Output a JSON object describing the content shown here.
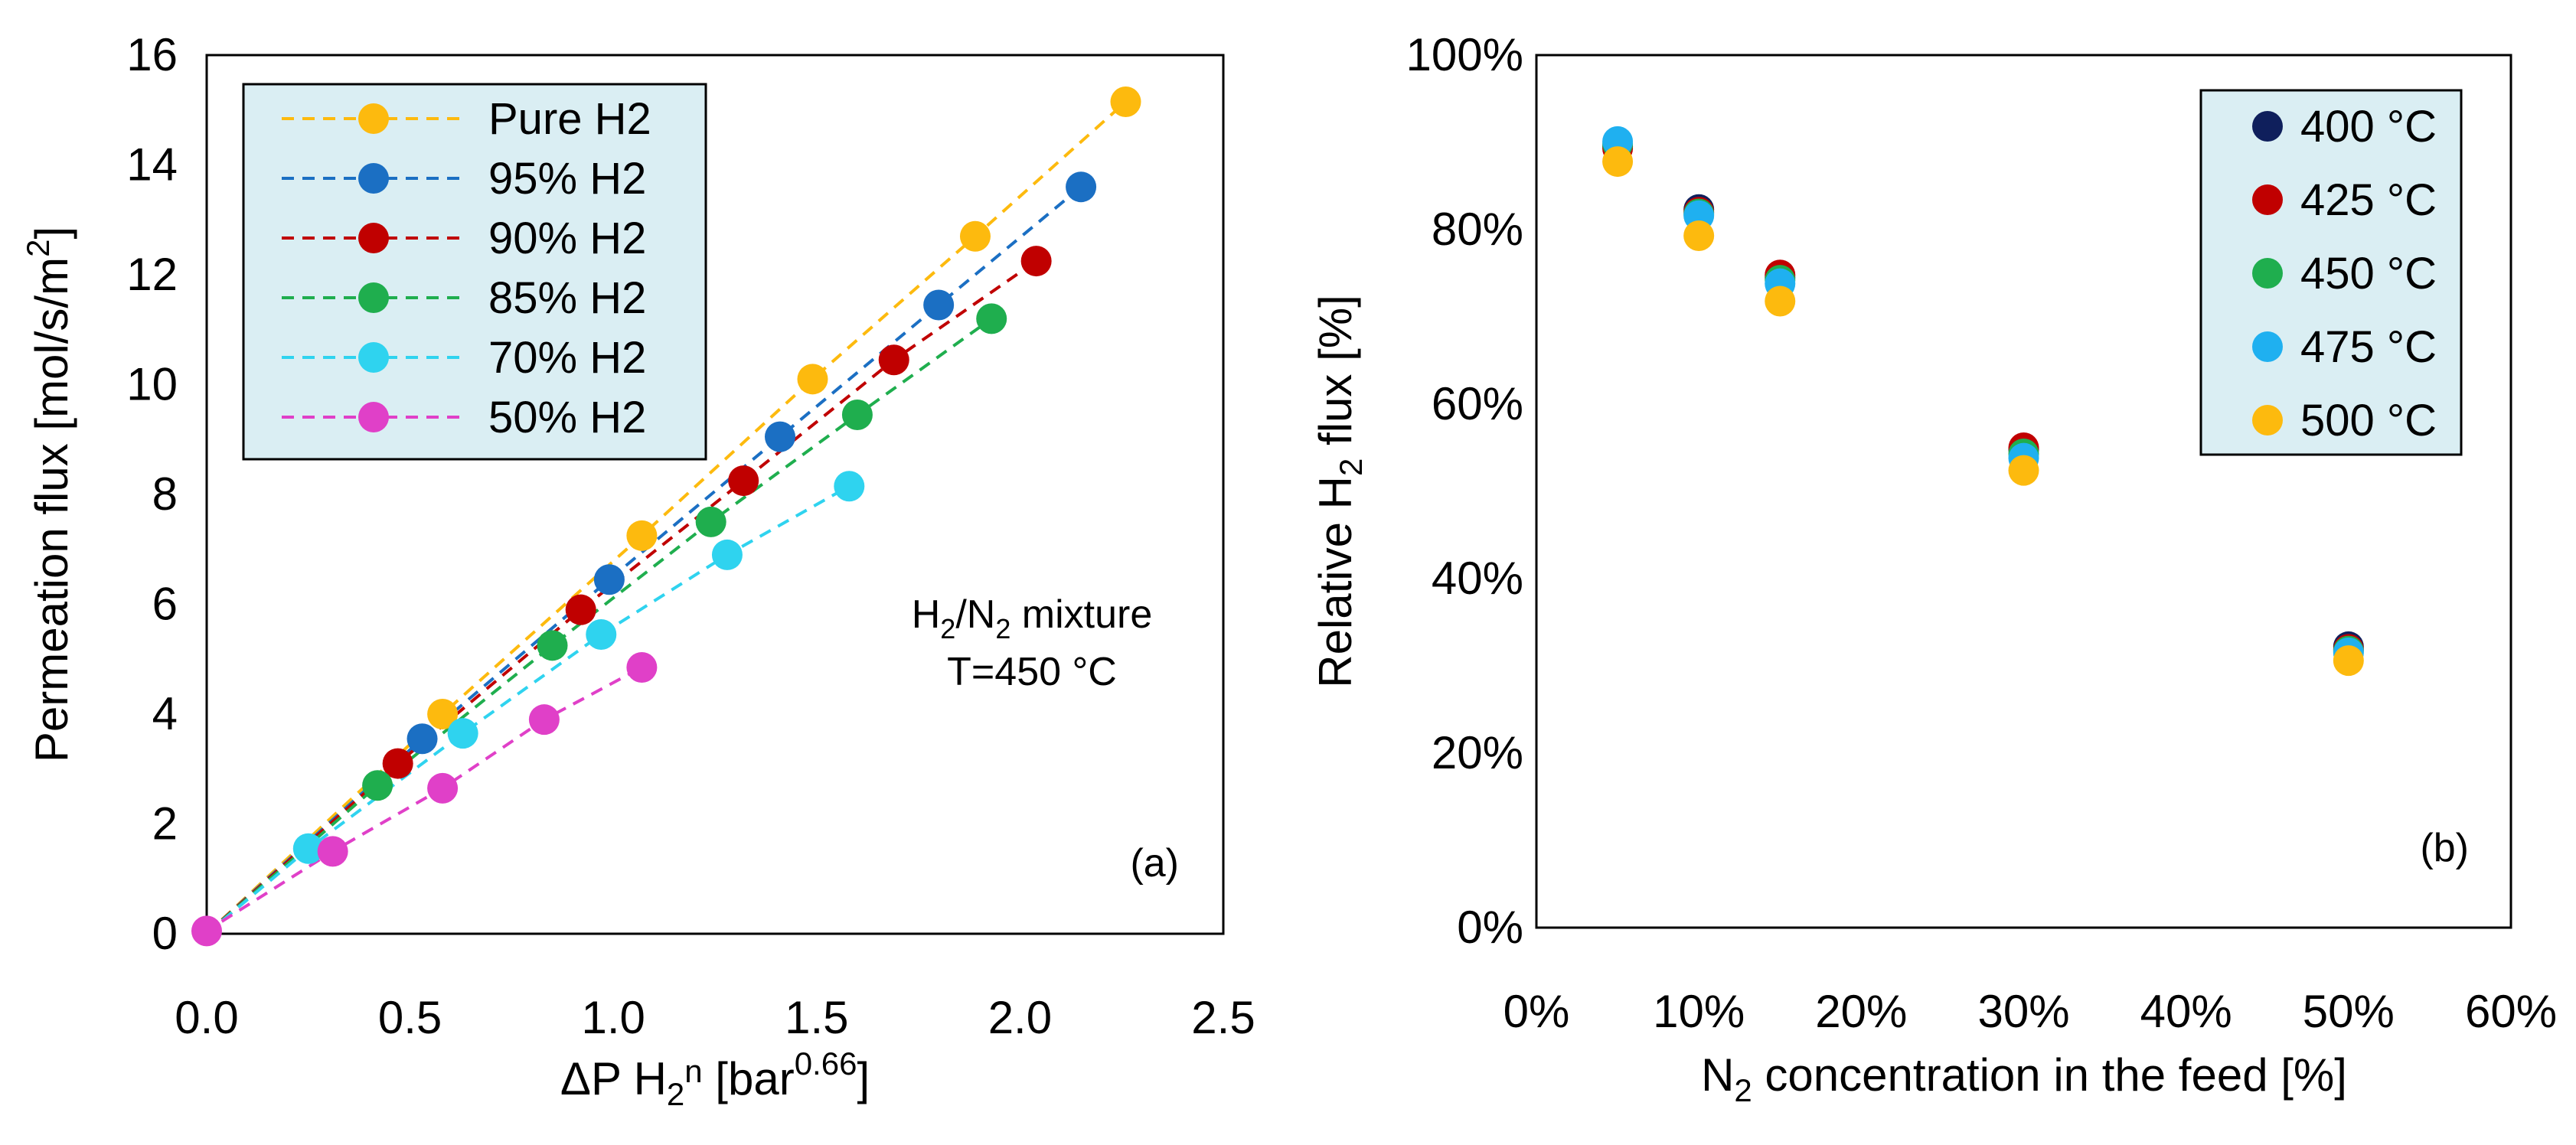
{
  "chart_data": [
    {
      "type": "scatter",
      "panel_label": "(a)",
      "annotation": {
        "line1": "H",
        "line1_sub": "2",
        "line1_mid": "/N",
        "line1_sub2": "2",
        "line1_end": " mixture",
        "line2": "T=450 °C"
      },
      "xlabel": {
        "main": "ΔP H",
        "sub": "2",
        "mid": "n",
        "unit_open": " [bar",
        "sup": "0.66",
        "unit_close": "]"
      },
      "ylabel": {
        "main": "Permeation flux [mol/s/m",
        "sup": "2",
        "close": "]"
      },
      "xlim": [
        0,
        2.5
      ],
      "ylim": [
        0,
        16
      ],
      "xticks": [
        "0.0",
        "0.5",
        "1.0",
        "1.5",
        "2.0",
        "2.5"
      ],
      "yticks": [
        "0",
        "2",
        "4",
        "6",
        "8",
        "10",
        "12",
        "14",
        "16"
      ],
      "legend_position": "top-left",
      "series": [
        {
          "name": "Pure H2",
          "color": "#FDBA0E",
          "x": [
            0.58,
            1.07,
            1.49,
            1.89,
            2.26
          ],
          "y": [
            4.0,
            7.25,
            10.1,
            12.7,
            15.15
          ]
        },
        {
          "name": "95% H2",
          "color": "#1B6FC3",
          "x": [
            0.53,
            0.99,
            1.41,
            1.8,
            2.15
          ],
          "y": [
            3.55,
            6.45,
            9.05,
            11.45,
            13.6
          ]
        },
        {
          "name": "90% H2",
          "color": "#C00000",
          "x": [
            0.47,
            0.92,
            1.32,
            1.69,
            2.04
          ],
          "y": [
            3.1,
            5.9,
            8.25,
            10.45,
            12.25
          ]
        },
        {
          "name": "85% H2",
          "color": "#1FAE4E",
          "x": [
            0.42,
            0.85,
            1.24,
            1.6,
            1.93
          ],
          "y": [
            2.7,
            5.25,
            7.5,
            9.45,
            11.2
          ]
        },
        {
          "name": "70% H2",
          "color": "#2FD3EF",
          "x": [
            0.25,
            0.63,
            0.97,
            1.28,
            1.58
          ],
          "y": [
            1.55,
            3.65,
            5.45,
            6.9,
            8.15
          ]
        },
        {
          "name": "50% H2",
          "color": "#E040C8",
          "x": [
            0.0,
            0.31,
            0.58,
            0.83,
            1.07
          ],
          "y": [
            0.05,
            1.5,
            2.65,
            3.9,
            4.85
          ]
        }
      ]
    },
    {
      "type": "scatter",
      "panel_label": "(b)",
      "xlabel": {
        "pre": "N",
        "sub": "2",
        "post": " concentration in the feed [%]"
      },
      "ylabel": {
        "pre": "Relative H",
        "sub": "2",
        "post": " flux [%]"
      },
      "xlim": [
        0,
        60
      ],
      "ylim": [
        0,
        100
      ],
      "xticks": [
        "0%",
        "10%",
        "20%",
        "30%",
        "40%",
        "50%",
        "60%"
      ],
      "yticks": [
        "0%",
        "20%",
        "40%",
        "60%",
        "80%",
        "100%"
      ],
      "legend_position": "top-right",
      "series": [
        {
          "name": "400 °C",
          "color": "#0F1F5C",
          "x": [
            5,
            10,
            15,
            30,
            50
          ],
          "y": [
            89.5,
            82.3,
            74.5,
            54.8,
            32.2
          ]
        },
        {
          "name": "425 °C",
          "color": "#C00000",
          "x": [
            5,
            10,
            15,
            30,
            50
          ],
          "y": [
            89.3,
            82.0,
            74.8,
            55.0,
            31.9
          ]
        },
        {
          "name": "450 °C",
          "color": "#1FAE4E",
          "x": [
            5,
            10,
            15,
            30,
            50
          ],
          "y": [
            89.8,
            81.8,
            74.2,
            54.3,
            31.7
          ]
        },
        {
          "name": "475 °C",
          "color": "#1FB0F0",
          "x": [
            5,
            10,
            15,
            30,
            50
          ],
          "y": [
            90.1,
            81.6,
            73.8,
            53.8,
            31.5
          ]
        },
        {
          "name": "500 °C",
          "color": "#FDBA0E",
          "x": [
            5,
            10,
            15,
            30,
            50
          ],
          "y": [
            87.8,
            79.3,
            71.8,
            52.4,
            30.6
          ]
        }
      ]
    }
  ]
}
